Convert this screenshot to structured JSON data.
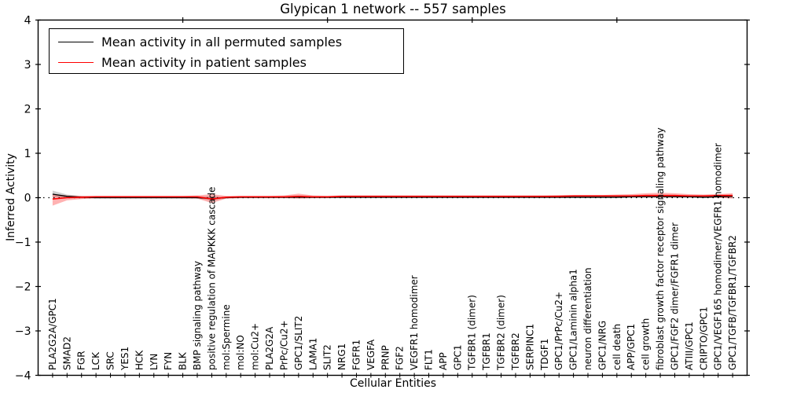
{
  "chart_data": {
    "type": "line",
    "title": "Glypican 1 network -- 557 samples",
    "xlabel": "Cellular Entities",
    "ylabel": "Inferred Activity",
    "ylim": [
      -4,
      4
    ],
    "xlim": [
      0,
      49
    ],
    "yticks": [
      -4,
      -3,
      -2,
      -1,
      0,
      1,
      2,
      3,
      4
    ],
    "xticks_top": [
      10,
      20,
      30,
      40
    ],
    "grid": false,
    "legend_position": "upper left",
    "reference_line": {
      "y": 0,
      "style": "dotted",
      "color": "#000000"
    },
    "categories": [
      "PLA2G2A/GPC1",
      "SMAD2",
      "FGR",
      "LCK",
      "SRC",
      "YES1",
      "HCK",
      "LYN",
      "FYN",
      "BLK",
      "BMP signaling pathway",
      "positive regulation of MAPKKK cascade",
      "mol:Spermine",
      "mol:NO",
      "mol:Cu2+",
      "PLA2G2A",
      "PrPc/Cu2+",
      "GPC1/SLIT2",
      "LAMA1",
      "SLIT2",
      "NRG1",
      "FGFR1",
      "VEGFA",
      "PRNP",
      "FGF2",
      "VEGFR1 homodimer",
      "FLT1",
      "APP",
      "GPC1",
      "TGFBR1 (dimer)",
      "TGFBR1",
      "TGFBR2 (dimer)",
      "TGFBR2",
      "SERPINC1",
      "TDGF1",
      "GPC1/PrPc/Cu2+",
      "GPC1/Laminin alpha1",
      "neuron differentiation",
      "GPC1/NRG",
      "cell death",
      "APP/GPC1",
      "cell growth",
      "fibroblast growth factor receptor signaling pathway",
      "GPC1/FGF2 dimer/FGFR1 dimer",
      "ATIII/GPC1",
      "CRIPTO/GPC1",
      "GPC1/VEGF165 homodimer/VEGFR1 homodimer",
      "GPC1/TGFB/TGFBR1/TGFBR2"
    ],
    "series": [
      {
        "name": "Mean activity in all permuted samples",
        "color": "#000000",
        "band_color": "rgba(0,0,0,0.18)",
        "values": [
          0.08,
          0.03,
          0.01,
          0.0,
          0.0,
          0.0,
          0.0,
          0.0,
          0.0,
          0.0,
          0.0,
          -0.02,
          0.0,
          0.01,
          0.01,
          0.01,
          0.01,
          0.01,
          0.01,
          0.01,
          0.01,
          0.01,
          0.01,
          0.01,
          0.01,
          0.01,
          0.01,
          0.01,
          0.01,
          0.01,
          0.01,
          0.01,
          0.01,
          0.01,
          0.01,
          0.01,
          0.01,
          0.01,
          0.01,
          0.01,
          0.02,
          0.02,
          0.02,
          0.02,
          0.02,
          0.01,
          0.02,
          0.03
        ],
        "band_lower": [
          0.02,
          -0.01,
          -0.02,
          -0.02,
          -0.02,
          -0.02,
          -0.02,
          -0.02,
          -0.02,
          -0.02,
          -0.02,
          -0.06,
          -0.02,
          -0.01,
          -0.01,
          -0.01,
          -0.01,
          -0.01,
          -0.01,
          -0.01,
          -0.01,
          -0.01,
          -0.01,
          -0.01,
          -0.01,
          -0.01,
          -0.01,
          -0.01,
          -0.01,
          -0.01,
          -0.01,
          -0.01,
          -0.01,
          -0.01,
          -0.01,
          -0.01,
          -0.01,
          -0.01,
          -0.01,
          -0.01,
          0.0,
          0.0,
          0.0,
          0.0,
          0.0,
          -0.01,
          0.0,
          -0.01
        ],
        "band_upper": [
          0.16,
          0.07,
          0.04,
          0.03,
          0.02,
          0.02,
          0.02,
          0.02,
          0.02,
          0.02,
          0.02,
          0.03,
          0.02,
          0.03,
          0.03,
          0.03,
          0.03,
          0.03,
          0.03,
          0.03,
          0.03,
          0.03,
          0.03,
          0.03,
          0.03,
          0.03,
          0.03,
          0.03,
          0.03,
          0.03,
          0.03,
          0.03,
          0.03,
          0.03,
          0.03,
          0.03,
          0.03,
          0.03,
          0.03,
          0.03,
          0.04,
          0.04,
          0.04,
          0.04,
          0.04,
          0.03,
          0.04,
          0.05
        ]
      },
      {
        "name": "Mean activity in patient samples",
        "color": "#ff0000",
        "band_color": "rgba(255,0,0,0.30)",
        "values": [
          -0.03,
          0.0,
          0.01,
          0.02,
          0.02,
          0.02,
          0.02,
          0.02,
          0.02,
          0.02,
          0.02,
          -0.03,
          0.01,
          0.02,
          0.02,
          0.02,
          0.02,
          0.03,
          0.02,
          0.02,
          0.03,
          0.03,
          0.03,
          0.03,
          0.03,
          0.03,
          0.03,
          0.03,
          0.03,
          0.03,
          0.03,
          0.03,
          0.03,
          0.03,
          0.03,
          0.03,
          0.04,
          0.04,
          0.04,
          0.04,
          0.04,
          0.05,
          0.05,
          0.05,
          0.04,
          0.04,
          0.05,
          0.05
        ],
        "band_lower": [
          -0.18,
          -0.06,
          -0.03,
          -0.01,
          -0.01,
          -0.01,
          -0.01,
          -0.01,
          -0.01,
          -0.01,
          -0.02,
          -0.12,
          -0.02,
          -0.01,
          -0.01,
          -0.01,
          -0.01,
          -0.02,
          -0.01,
          -0.01,
          0.0,
          0.0,
          0.0,
          0.0,
          0.0,
          0.0,
          0.0,
          0.0,
          0.0,
          0.0,
          0.0,
          0.0,
          0.0,
          0.0,
          0.0,
          0.0,
          0.01,
          0.01,
          0.01,
          0.01,
          0.01,
          0.01,
          0.01,
          0.01,
          0.01,
          0.01,
          0.0,
          -0.02
        ],
        "band_upper": [
          0.08,
          0.05,
          0.04,
          0.04,
          0.04,
          0.04,
          0.04,
          0.04,
          0.04,
          0.04,
          0.05,
          0.08,
          0.04,
          0.04,
          0.04,
          0.04,
          0.05,
          0.09,
          0.05,
          0.04,
          0.05,
          0.05,
          0.05,
          0.05,
          0.05,
          0.05,
          0.05,
          0.05,
          0.05,
          0.05,
          0.05,
          0.05,
          0.05,
          0.05,
          0.05,
          0.06,
          0.06,
          0.06,
          0.06,
          0.07,
          0.08,
          0.1,
          0.11,
          0.1,
          0.08,
          0.07,
          0.08,
          0.1
        ]
      }
    ]
  }
}
